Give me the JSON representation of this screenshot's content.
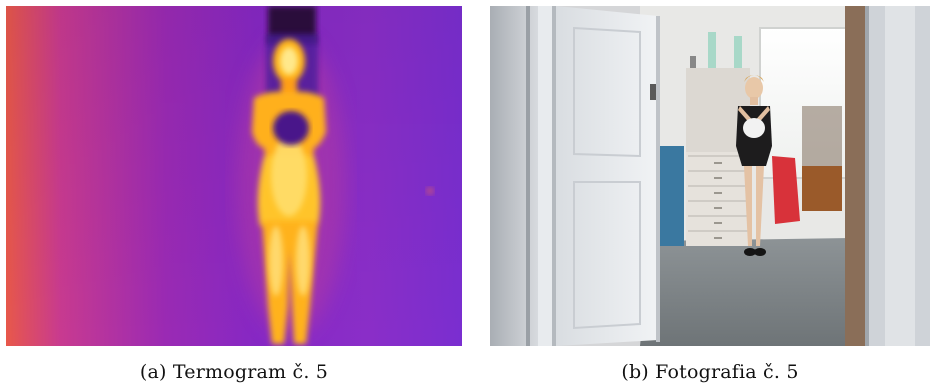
{
  "figures": [
    {
      "caption": "(a) Termogram č. 5",
      "colors": {
        "background_left": "#e8584a",
        "background_mid": "#9a2ab4",
        "background_right": "#7a2ed0",
        "body_core": "#fff6b0",
        "body_warm": "#ffc21a",
        "body_edge": "#ff8a10"
      }
    },
    {
      "caption": "(b) Fotografia č. 5",
      "colors": {
        "wall": "#c8cbd0",
        "door": "#e9ecef",
        "floor": "#7e8588",
        "outfit": "#1d1c1d",
        "cabinet": "#e6e2dc"
      }
    }
  ]
}
